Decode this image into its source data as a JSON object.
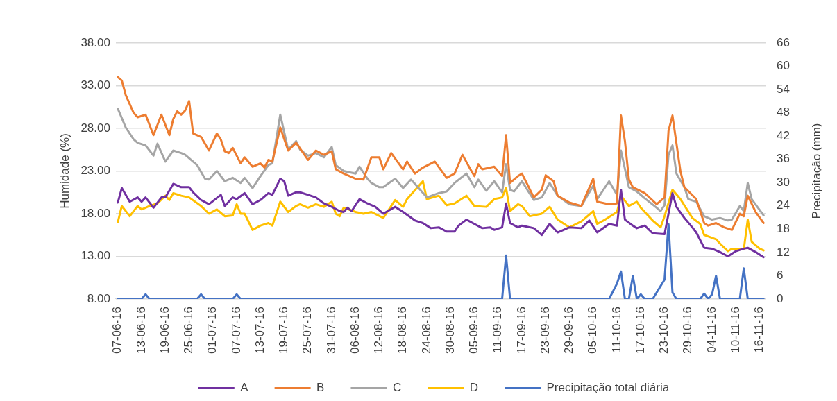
{
  "chart_data": {
    "type": "line",
    "ylabel": "Humidade (%)",
    "y2label": "Precipitação (mm)",
    "xlim": [
      "--06-06T12:00",
      "--11-17T12:00"
    ],
    "xticks": [
      {
        "value": "--06-07",
        "label": "07-06-16"
      },
      {
        "value": "--06-13",
        "label": "13-06-16"
      },
      {
        "value": "--06-19",
        "label": "19-06-16"
      },
      {
        "value": "--06-25",
        "label": "25-06-16"
      },
      {
        "value": "--07-01",
        "label": "01-07-16"
      },
      {
        "value": "--07-07",
        "label": "07-07-16"
      },
      {
        "value": "--07-13",
        "label": "13-07-16"
      },
      {
        "value": "--07-19",
        "label": "19-07-16"
      },
      {
        "value": "--07-25",
        "label": "25-07-16"
      },
      {
        "value": "--07-31",
        "label": "31-07-16"
      },
      {
        "value": "--08-06",
        "label": "06-08-16"
      },
      {
        "value": "--08-12",
        "label": "12-08-16"
      },
      {
        "value": "--08-18",
        "label": "18-08-16"
      },
      {
        "value": "--08-24",
        "label": "24-08-16"
      },
      {
        "value": "--08-30",
        "label": "30-08-16"
      },
      {
        "value": "--09-05",
        "label": "05-09-16"
      },
      {
        "value": "--09-11",
        "label": "11-09-16"
      },
      {
        "value": "--09-17",
        "label": "17-09-16"
      },
      {
        "value": "--09-23",
        "label": "23-09-16"
      },
      {
        "value": "--09-29",
        "label": "29-09-16"
      },
      {
        "value": "--10-05",
        "label": "05-10-16"
      },
      {
        "value": "--10-11",
        "label": "11-10-16"
      },
      {
        "value": "--10-17",
        "label": "17-10-16"
      },
      {
        "value": "--10-23",
        "label": "23-10-16"
      },
      {
        "value": "--10-29",
        "label": "29-10-16"
      },
      {
        "value": "--11-04",
        "label": "04-11-16"
      },
      {
        "value": "--11-10",
        "label": "10-11-16"
      },
      {
        "value": "--11-16",
        "label": "16-11-16"
      }
    ],
    "ylim": [
      8,
      38
    ],
    "yticks": [
      {
        "value": 8,
        "label": "8.00"
      },
      {
        "value": 13,
        "label": "13.00"
      },
      {
        "value": 18,
        "label": "18.00"
      },
      {
        "value": 23,
        "label": "23.00"
      },
      {
        "value": 28,
        "label": "28.00"
      },
      {
        "value": 33,
        "label": "33.00"
      },
      {
        "value": 38,
        "label": "38.00"
      }
    ],
    "y2lim": [
      0,
      66
    ],
    "y2ticks": [
      0,
      6,
      12,
      18,
      24,
      30,
      36,
      42,
      48,
      54,
      60,
      66
    ],
    "grid": "y",
    "legend": "bottom",
    "marker": "none",
    "line_style": "solid",
    "series": [
      {
        "name": "A",
        "color": "#7030a0",
        "x": [
          "--06-07",
          "--06-08",
          "--06-10",
          "--06-12",
          "--06-13",
          "--06-14",
          "--06-16",
          "--06-18",
          "--06-19",
          "--06-21",
          "--06-23",
          "--06-25",
          "--06-26",
          "--06-28",
          "--06-30",
          "--07-03",
          "--07-04",
          "--07-06",
          "--07-07",
          "--07-09",
          "--07-11",
          "--07-13",
          "--07-15",
          "--07-16",
          "--07-18",
          "--07-19",
          "--07-20",
          "--07-22",
          "--07-23",
          "--07-25",
          "--07-27",
          "--07-29",
          "--07-31",
          "--08-02",
          "--08-03",
          "--08-04",
          "--08-05",
          "--08-07",
          "--08-09",
          "--08-11",
          "--08-13",
          "--08-16",
          "--08-18",
          "--08-21",
          "--08-23",
          "--08-25",
          "--08-27",
          "--08-29",
          "--08-31",
          "--09-01",
          "--09-03",
          "--09-05",
          "--09-07",
          "--09-09",
          "--09-10",
          "--09-12",
          "--09-13",
          "--09-14",
          "--09-16",
          "--09-17",
          "--09-20",
          "--09-22",
          "--09-24",
          "--09-26",
          "--09-29",
          "--10-02",
          "--10-04",
          "--10-06",
          "--10-09",
          "--10-11",
          "--10-12",
          "--10-13",
          "--10-15",
          "--10-16",
          "--10-18",
          "--10-20",
          "--10-23",
          "--10-25",
          "--10-26",
          "--10-28",
          "--10-30",
          "--10-31",
          "--11-02",
          "--11-04",
          "--11-06",
          "--11-08",
          "--11-10",
          "--11-12",
          "--11-13",
          "--11-15",
          "--11-17"
        ],
        "values": [
          19.3,
          21.0,
          19.4,
          19.9,
          19.4,
          19.9,
          18.7,
          19.9,
          19.9,
          21.5,
          21.1,
          21.1,
          20.5,
          19.6,
          19.1,
          20.2,
          18.9,
          19.9,
          19.7,
          20.4,
          19.1,
          19.6,
          20.4,
          20.2,
          22.1,
          21.8,
          20.1,
          20.5,
          20.5,
          20.2,
          19.9,
          19.2,
          18.8,
          18.3,
          18.2,
          18.7,
          18.3,
          19.7,
          19.2,
          18.8,
          18.0,
          18.8,
          18.2,
          17.2,
          16.9,
          16.3,
          16.4,
          15.9,
          15.9,
          16.6,
          17.3,
          16.8,
          16.3,
          16.4,
          16.1,
          16.4,
          19.2,
          16.9,
          16.4,
          16.6,
          16.3,
          15.5,
          16.8,
          15.8,
          16.4,
          16.3,
          17.2,
          15.8,
          16.8,
          16.6,
          20.8,
          17.3,
          16.6,
          16.3,
          16.6,
          15.7,
          15.6,
          20.4,
          18.8,
          17.5,
          16.4,
          15.8,
          14.0,
          13.9,
          13.5,
          13.0,
          13.6,
          13.9,
          14.0,
          13.5,
          12.9
        ]
      },
      {
        "name": "B",
        "color": "#ed7d31",
        "x": [
          "--06-07",
          "--06-08",
          "--06-09",
          "--06-11",
          "--06-12",
          "--06-14",
          "--06-16",
          "--06-18",
          "--06-20",
          "--06-21",
          "--06-22",
          "--06-23",
          "--06-24",
          "--06-25",
          "--06-26",
          "--06-28",
          "--06-30",
          "--07-02",
          "--07-03",
          "--07-04",
          "--07-05",
          "--07-06",
          "--07-08",
          "--07-09",
          "--07-11",
          "--07-13",
          "--07-14",
          "--07-15",
          "--07-16",
          "--07-18",
          "--07-20",
          "--07-22",
          "--07-25",
          "--07-27",
          "--07-29",
          "--07-31",
          "--08-01",
          "--08-03",
          "--08-06",
          "--08-08",
          "--08-10",
          "--08-12",
          "--08-13",
          "--08-15",
          "--08-18",
          "--08-19",
          "--08-21",
          "--08-23",
          "--08-26",
          "--08-29",
          "--08-31",
          "--09-02",
          "--09-04",
          "--09-05",
          "--09-06",
          "--09-07",
          "--09-10",
          "--09-12",
          "--09-13",
          "--09-14",
          "--09-16",
          "--09-17",
          "--09-20",
          "--09-22",
          "--09-23",
          "--09-25",
          "--09-26",
          "--09-29",
          "--10-02",
          "--10-05",
          "--10-06",
          "--10-09",
          "--10-11",
          "--10-12",
          "--10-13",
          "--10-14",
          "--10-15",
          "--10-18",
          "--10-21",
          "--10-23",
          "--10-24",
          "--10-25",
          "--10-27",
          "--10-28",
          "--10-31",
          "--11-02",
          "--11-03",
          "--11-05",
          "--11-07",
          "--11-09",
          "--11-11",
          "--11-12",
          "--11-13",
          "--11-15",
          "--11-17"
        ],
        "values": [
          34.0,
          33.6,
          31.9,
          29.8,
          29.3,
          29.6,
          27.2,
          29.6,
          27.2,
          29.1,
          30.0,
          29.6,
          30.1,
          31.2,
          27.4,
          27.0,
          25.4,
          27.4,
          26.7,
          25.3,
          25.1,
          25.7,
          23.9,
          24.6,
          23.5,
          23.9,
          23.4,
          24.3,
          24.1,
          28.1,
          25.4,
          26.3,
          24.3,
          25.4,
          24.9,
          25.3,
          23.2,
          22.7,
          22.1,
          22.0,
          24.6,
          24.6,
          23.2,
          25.1,
          23.2,
          24.1,
          22.7,
          23.4,
          24.1,
          22.2,
          22.7,
          24.9,
          23.2,
          22.4,
          23.8,
          23.2,
          23.5,
          22.4,
          27.2,
          21.6,
          22.4,
          22.7,
          19.9,
          20.8,
          22.5,
          21.8,
          20.1,
          19.3,
          18.9,
          22.1,
          19.4,
          19.1,
          19.2,
          29.5,
          26.5,
          22.0,
          21.1,
          20.4,
          19.1,
          19.9,
          27.7,
          29.5,
          23.0,
          21.1,
          19.7,
          16.9,
          16.6,
          16.9,
          16.4,
          16.1,
          18.0,
          17.7,
          20.1,
          18.2,
          16.9
        ]
      },
      {
        "name": "C",
        "color": "#a5a5a5",
        "x": [
          "--06-07",
          "--06-09",
          "--06-11",
          "--06-12",
          "--06-14",
          "--06-16",
          "--06-17",
          "--06-19",
          "--06-21",
          "--06-23",
          "--06-24",
          "--06-27",
          "--06-29",
          "--06-30",
          "--07-02",
          "--07-04",
          "--07-06",
          "--07-08",
          "--07-09",
          "--07-11",
          "--07-13",
          "--07-15",
          "--07-16",
          "--07-18",
          "--07-20",
          "--07-22",
          "--07-23",
          "--07-25",
          "--07-27",
          "--07-29",
          "--07-31",
          "--08-01",
          "--08-03",
          "--08-04",
          "--08-06",
          "--08-07",
          "--08-09",
          "--08-10",
          "--08-12",
          "--08-13",
          "--08-16",
          "--08-18",
          "--08-20",
          "--08-21",
          "--08-24",
          "--08-27",
          "--08-29",
          "--08-31",
          "--09-03",
          "--09-05",
          "--09-06",
          "--09-08",
          "--09-10",
          "--09-12",
          "--09-13",
          "--09-14",
          "--09-15",
          "--09-17",
          "--09-20",
          "--09-22",
          "--09-24",
          "--09-26",
          "--09-29",
          "--10-02",
          "--10-05",
          "--10-06",
          "--10-09",
          "--10-11",
          "--10-12",
          "--10-14",
          "--10-16",
          "--10-18",
          "--10-21",
          "--10-22",
          "--10-23",
          "--10-24",
          "--10-25",
          "--10-26",
          "--10-28",
          "--10-29",
          "--10-31",
          "--11-02",
          "--11-04",
          "--11-06",
          "--11-08",
          "--11-09",
          "--11-11",
          "--11-12",
          "--11-13",
          "--11-14",
          "--11-17"
        ],
        "values": [
          30.3,
          28.1,
          26.7,
          26.3,
          26.0,
          24.8,
          26.2,
          24.1,
          25.4,
          25.1,
          24.9,
          23.7,
          22.1,
          22.0,
          23.0,
          21.8,
          22.2,
          21.6,
          22.2,
          21.0,
          22.4,
          23.7,
          23.9,
          29.6,
          25.5,
          26.5,
          25.5,
          24.8,
          25.1,
          24.6,
          25.8,
          23.7,
          23.0,
          22.9,
          22.7,
          23.5,
          22.1,
          21.6,
          21.1,
          21.1,
          22.1,
          21.0,
          22.0,
          21.5,
          19.9,
          20.4,
          20.6,
          21.6,
          22.7,
          21.1,
          22.0,
          20.7,
          21.8,
          20.5,
          23.8,
          20.8,
          20.6,
          21.8,
          19.6,
          19.9,
          21.6,
          20.1,
          19.1,
          18.9,
          21.3,
          19.7,
          21.8,
          20.2,
          25.4,
          21.1,
          20.6,
          19.8,
          18.7,
          18.3,
          19.0,
          24.9,
          26.0,
          22.7,
          21.1,
          19.7,
          19.4,
          17.7,
          17.3,
          17.5,
          17.2,
          17.3,
          18.9,
          18.3,
          21.6,
          19.7,
          17.8
        ]
      },
      {
        "name": "D",
        "color": "#ffc000",
        "x": [
          "--06-07",
          "--06-08",
          "--06-10",
          "--06-12",
          "--06-13",
          "--06-15",
          "--06-17",
          "--06-19",
          "--06-20",
          "--06-21",
          "--06-23",
          "--06-25",
          "--06-28",
          "--06-30",
          "--07-02",
          "--07-04",
          "--07-06",
          "--07-07",
          "--07-08",
          "--07-09",
          "--07-11",
          "--07-13",
          "--07-15",
          "--07-16",
          "--07-18",
          "--07-20",
          "--07-22",
          "--07-23",
          "--07-25",
          "--07-27",
          "--07-29",
          "--07-31",
          "--08-01",
          "--08-02",
          "--08-03",
          "--08-06",
          "--08-08",
          "--08-10",
          "--08-13",
          "--08-16",
          "--08-18",
          "--08-19",
          "--08-23",
          "--08-24",
          "--08-27",
          "--08-29",
          "--08-31",
          "--09-03",
          "--09-05",
          "--09-08",
          "--09-10",
          "--09-12",
          "--09-13",
          "--09-14",
          "--09-16",
          "--09-17",
          "--09-19",
          "--09-22",
          "--09-24",
          "--09-26",
          "--09-29",
          "--10-02",
          "--10-05",
          "--10-06",
          "--10-08",
          "--10-11",
          "--10-12",
          "--10-14",
          "--10-16",
          "--10-17",
          "--10-20",
          "--10-22",
          "--10-23",
          "--10-25",
          "--10-27",
          "--10-30",
          "--11-01",
          "--11-02",
          "--11-05",
          "--11-06",
          "--11-08",
          "--11-09",
          "--11-12",
          "--11-13",
          "--11-14",
          "--11-16",
          "--11-17"
        ],
        "values": [
          17.0,
          18.9,
          17.7,
          18.9,
          18.5,
          18.9,
          19.2,
          20.1,
          19.6,
          20.4,
          20.1,
          19.9,
          18.9,
          18.0,
          18.5,
          17.7,
          17.8,
          19.1,
          18.0,
          18.0,
          16.1,
          16.6,
          16.9,
          16.6,
          19.4,
          18.2,
          18.9,
          19.1,
          18.7,
          19.1,
          18.8,
          19.4,
          18.0,
          17.7,
          18.7,
          18.2,
          18.0,
          18.2,
          17.5,
          19.6,
          18.8,
          19.7,
          21.8,
          19.7,
          20.1,
          19.0,
          19.2,
          20.1,
          18.9,
          18.8,
          19.7,
          19.9,
          21.0,
          18.3,
          19.1,
          18.9,
          17.7,
          18.0,
          18.8,
          17.3,
          16.4,
          17.1,
          18.3,
          16.8,
          17.3,
          18.2,
          20.1,
          18.9,
          19.4,
          18.7,
          17.2,
          16.4,
          17.7,
          20.8,
          19.7,
          17.5,
          16.8,
          15.5,
          15.0,
          14.5,
          13.6,
          13.9,
          13.8,
          17.3,
          14.7,
          13.9,
          13.7
        ]
      },
      {
        "name": "Precipitação total diária",
        "color": "#4472c4",
        "axis": "y2",
        "x": [
          "--06-07",
          "--06-13",
          "--06-14",
          "--06-15",
          "--06-27",
          "--06-28",
          "--06-29",
          "--07-06",
          "--07-07",
          "--07-08",
          "--09-12",
          "--09-13",
          "--09-14",
          "--10-09",
          "--10-11",
          "--10-12",
          "--10-13",
          "--10-14",
          "--10-15",
          "--10-16",
          "--10-17",
          "--10-18",
          "--10-20",
          "--10-23",
          "--10-24",
          "--10-25",
          "--10-26",
          "--11-01",
          "--11-02",
          "--11-03",
          "--11-04",
          "--11-05",
          "--11-06",
          "--11-11",
          "--11-12",
          "--11-13",
          "--11-17"
        ],
        "values": [
          0,
          0,
          1.2,
          0,
          0,
          1.2,
          0,
          0,
          1.2,
          0,
          0,
          11.2,
          0,
          0,
          4.0,
          7.1,
          0,
          0,
          6.0,
          0,
          1.2,
          0,
          0,
          5.0,
          19.3,
          1.7,
          0,
          0,
          1.4,
          0,
          1.2,
          6.0,
          0,
          0,
          7.9,
          0,
          0
        ]
      }
    ]
  }
}
